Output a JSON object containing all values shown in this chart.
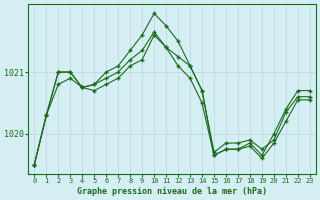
{
  "title": "Graphe pression niveau de la mer (hPa)",
  "background_color": "#d4eef4",
  "grid_color": "#b8d8d8",
  "line_color": "#1a6b1a",
  "x_labels": [
    "0",
    "1",
    "2",
    "3",
    "4",
    "5",
    "6",
    "7",
    "8",
    "9",
    "10",
    "11",
    "12",
    "13",
    "14",
    "15",
    "16",
    "17",
    "18",
    "19",
    "20",
    "21",
    "22",
    "23"
  ],
  "series": [
    [
      1019.5,
      1020.3,
      1020.8,
      1020.9,
      1020.75,
      1020.7,
      1020.8,
      1020.9,
      1021.1,
      1021.2,
      1021.6,
      1021.4,
      1021.25,
      1021.1,
      1020.7,
      1019.7,
      1019.85,
      1019.85,
      1019.9,
      1019.75,
      1019.9,
      1020.35,
      1020.6,
      1020.6
    ],
    [
      1019.5,
      1020.3,
      1021.0,
      1021.0,
      1020.75,
      1020.8,
      1021.0,
      1021.1,
      1021.35,
      1021.6,
      1021.95,
      1021.75,
      1021.5,
      1021.1,
      1020.7,
      1019.65,
      1019.75,
      1019.75,
      1019.85,
      1019.65,
      1020.0,
      1020.4,
      1020.7,
      1020.7
    ],
    [
      1019.5,
      1020.3,
      1021.0,
      1021.0,
      1020.75,
      1020.8,
      1020.9,
      1021.0,
      1021.2,
      1021.35,
      1021.65,
      1021.4,
      1021.1,
      1020.9,
      1020.5,
      1019.65,
      1019.75,
      1019.75,
      1019.8,
      1019.6,
      1019.85,
      1020.2,
      1020.55,
      1020.55
    ]
  ],
  "ylim": [
    1019.35,
    1022.1
  ],
  "yticks": [
    1020.0,
    1021.0
  ],
  "figsize": [
    3.2,
    2.0
  ],
  "dpi": 100
}
